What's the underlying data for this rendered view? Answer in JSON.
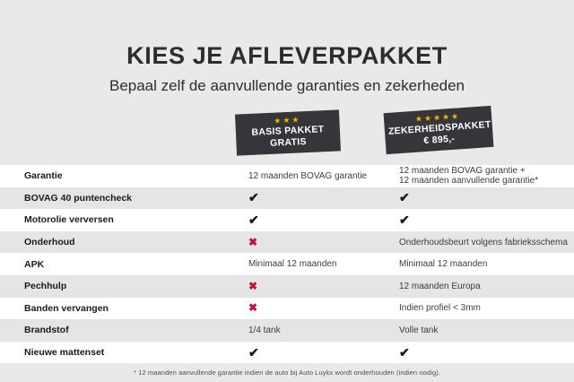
{
  "header": {
    "title": "KIES JE AFLEVERPAKKET",
    "subtitle": "Bepaal zelf de aanvullende garanties en zekerheden"
  },
  "packages": [
    {
      "name": "BASIS PAKKET",
      "price": "GRATIS",
      "stars": 3
    },
    {
      "name": "ZEKERHEIDSPAKKET",
      "price": "€ 895,-",
      "stars": 5
    }
  ],
  "rows": [
    {
      "label": "Garantie",
      "basis": {
        "kind": "text",
        "lines": [
          "12 maanden BOVAG garantie"
        ]
      },
      "zekerheid": {
        "kind": "text",
        "lines": [
          "12 maanden BOVAG garantie +",
          "12 maanden aanvullende garantie*"
        ]
      }
    },
    {
      "label": "BOVAG 40 puntencheck",
      "basis": {
        "kind": "check"
      },
      "zekerheid": {
        "kind": "check"
      }
    },
    {
      "label": "Motorolie verversen",
      "basis": {
        "kind": "check"
      },
      "zekerheid": {
        "kind": "check"
      }
    },
    {
      "label": "Onderhoud",
      "basis": {
        "kind": "cross"
      },
      "zekerheid": {
        "kind": "text",
        "lines": [
          "Onderhoudsbeurt volgens fabrieksschema"
        ]
      }
    },
    {
      "label": "APK",
      "basis": {
        "kind": "text",
        "lines": [
          "Minimaal 12 maanden"
        ]
      },
      "zekerheid": {
        "kind": "text",
        "lines": [
          "Minimaal 12 maanden"
        ]
      }
    },
    {
      "label": "Pechhulp",
      "basis": {
        "kind": "cross"
      },
      "zekerheid": {
        "kind": "text",
        "lines": [
          "12 maanden Europa"
        ]
      }
    },
    {
      "label": "Banden vervangen",
      "basis": {
        "kind": "cross"
      },
      "zekerheid": {
        "kind": "text",
        "lines": [
          "Indien profiel < 3mm"
        ]
      }
    },
    {
      "label": "Brandstof",
      "basis": {
        "kind": "text",
        "lines": [
          "1/4 tank"
        ]
      },
      "zekerheid": {
        "kind": "text",
        "lines": [
          "Volle tank"
        ]
      }
    },
    {
      "label": "Nieuwe mattenset",
      "basis": {
        "kind": "check"
      },
      "zekerheid": {
        "kind": "check"
      }
    }
  ],
  "footer": {
    "note": "* 12 maanden aanvullende garantie indien de auto bij Auto Luykx wordt onderhouden (indien nodig)."
  },
  "icons": {
    "check": "✔",
    "cross": "✖",
    "star": "★"
  },
  "colors": {
    "page-bg": "#e9e9e9",
    "row-white": "#ffffff",
    "row-alt": "#e5e5e5",
    "badge-bg": "#34363a",
    "star": "#f0b400",
    "check": "#1a1a1a",
    "cross": "#c41235",
    "title": "#2d2d2d",
    "text": "#3c3c3b"
  }
}
